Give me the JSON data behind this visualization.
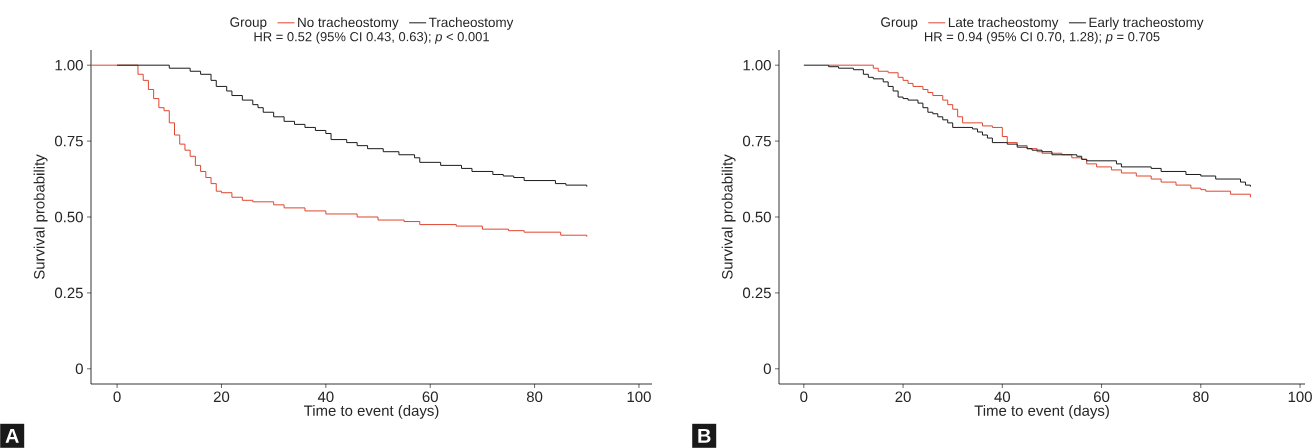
{
  "chart_data": [
    {
      "type": "step",
      "subtitle": "HR = 0.52 (95% CI 0.43, 0.63); *p* < 0.001",
      "legend_title": "Group",
      "legend": "top",
      "xlabel": "Time to event (days)",
      "ylabel": "Survival probability",
      "xlim": [
        -5,
        102.5
      ],
      "ylim": [
        -0.05,
        1.05
      ],
      "xticks": [
        0,
        20,
        40,
        60,
        80,
        100
      ],
      "yticks": [
        {
          "value": 0,
          "label": "0"
        },
        {
          "value": 0.25,
          "label": "0.25"
        },
        {
          "value": 0.5,
          "label": "0.50"
        },
        {
          "value": 0.75,
          "label": "0.75"
        },
        {
          "value": 1,
          "label": "1.00"
        }
      ],
      "annotations": [
        "A"
      ],
      "series": [
        {
          "name": "No tracheostomy",
          "color": "#e0452f",
          "x": [
            -5,
            4,
            5,
            6,
            7,
            8,
            9,
            10,
            11,
            12,
            13,
            14,
            15,
            16,
            17,
            18,
            19,
            20,
            22,
            24,
            26,
            30,
            32,
            36,
            40,
            46,
            50,
            55,
            58,
            65,
            70,
            75,
            78,
            85,
            90
          ],
          "values": [
            1.0,
            0.97,
            0.95,
            0.92,
            0.89,
            0.86,
            0.85,
            0.81,
            0.77,
            0.74,
            0.72,
            0.7,
            0.67,
            0.65,
            0.63,
            0.61,
            0.585,
            0.58,
            0.565,
            0.555,
            0.55,
            0.54,
            0.53,
            0.52,
            0.51,
            0.5,
            0.49,
            0.485,
            0.475,
            0.47,
            0.46,
            0.455,
            0.45,
            0.44,
            0.435
          ]
        },
        {
          "name": "Tracheostomy",
          "color": "#1a1a1a",
          "x": [
            0,
            10,
            14,
            16,
            18,
            19,
            21,
            22,
            24,
            26,
            27,
            28,
            30,
            32,
            34,
            36,
            38,
            40,
            41,
            44,
            46,
            48,
            51,
            54,
            57,
            58,
            62,
            66,
            68,
            72,
            74,
            76,
            78,
            84,
            86,
            90
          ],
          "values": [
            1.0,
            0.99,
            0.98,
            0.97,
            0.95,
            0.93,
            0.915,
            0.9,
            0.885,
            0.87,
            0.86,
            0.845,
            0.83,
            0.815,
            0.805,
            0.795,
            0.785,
            0.775,
            0.755,
            0.745,
            0.735,
            0.725,
            0.715,
            0.705,
            0.695,
            0.68,
            0.67,
            0.66,
            0.65,
            0.64,
            0.635,
            0.63,
            0.62,
            0.61,
            0.605,
            0.6
          ]
        }
      ]
    },
    {
      "type": "step",
      "subtitle": "HR = 0.94 (95% CI 0.70, 1.28); *p* = 0.705",
      "legend_title": "Group",
      "legend": "top",
      "xlabel": "Time to event (days)",
      "ylabel": "Survival probability",
      "xlim": [
        -5,
        101
      ],
      "ylim": [
        -0.05,
        1.05
      ],
      "xticks": [
        0,
        20,
        40,
        60,
        80,
        100
      ],
      "yticks": [
        {
          "value": 0,
          "label": "0"
        },
        {
          "value": 0.25,
          "label": "0.25"
        },
        {
          "value": 0.5,
          "label": "0.50"
        },
        {
          "value": 0.75,
          "label": "0.75"
        },
        {
          "value": 1,
          "label": "1.00"
        }
      ],
      "annotations": [
        "B"
      ],
      "series": [
        {
          "name": "Late tracheostomy",
          "color": "#e0452f",
          "x": [
            5,
            14,
            15,
            17,
            19,
            20,
            21,
            22,
            24,
            25,
            26,
            28,
            29,
            30,
            31,
            32,
            36,
            38,
            40,
            41,
            43,
            45,
            47,
            48,
            52,
            54,
            56,
            57,
            59,
            62,
            64,
            67,
            70,
            72,
            75,
            78,
            80,
            81,
            86,
            90
          ],
          "values": [
            1.0,
            0.99,
            0.98,
            0.975,
            0.96,
            0.95,
            0.94,
            0.93,
            0.92,
            0.91,
            0.9,
            0.885,
            0.87,
            0.855,
            0.83,
            0.81,
            0.8,
            0.795,
            0.765,
            0.745,
            0.735,
            0.725,
            0.715,
            0.71,
            0.705,
            0.695,
            0.69,
            0.675,
            0.665,
            0.655,
            0.645,
            0.635,
            0.625,
            0.615,
            0.605,
            0.595,
            0.59,
            0.585,
            0.575,
            0.565
          ]
        },
        {
          "name": "Early tracheostomy",
          "color": "#1a1a1a",
          "x": [
            0,
            5,
            7,
            10,
            12,
            13,
            14,
            16,
            17,
            18,
            19,
            20,
            21,
            23,
            24,
            25,
            26,
            27,
            28,
            29,
            30,
            34,
            35,
            36,
            37,
            38,
            41,
            43,
            45,
            46,
            48,
            50,
            55,
            56,
            57,
            63,
            64,
            70,
            72,
            77,
            80,
            83,
            88,
            89,
            90
          ],
          "values": [
            1.0,
            0.995,
            0.99,
            0.985,
            0.97,
            0.96,
            0.955,
            0.945,
            0.93,
            0.915,
            0.895,
            0.89,
            0.885,
            0.875,
            0.86,
            0.845,
            0.84,
            0.83,
            0.82,
            0.81,
            0.795,
            0.79,
            0.78,
            0.77,
            0.76,
            0.745,
            0.74,
            0.73,
            0.725,
            0.72,
            0.715,
            0.705,
            0.7,
            0.69,
            0.685,
            0.675,
            0.665,
            0.66,
            0.65,
            0.64,
            0.635,
            0.625,
            0.615,
            0.605,
            0.6
          ]
        }
      ]
    }
  ]
}
